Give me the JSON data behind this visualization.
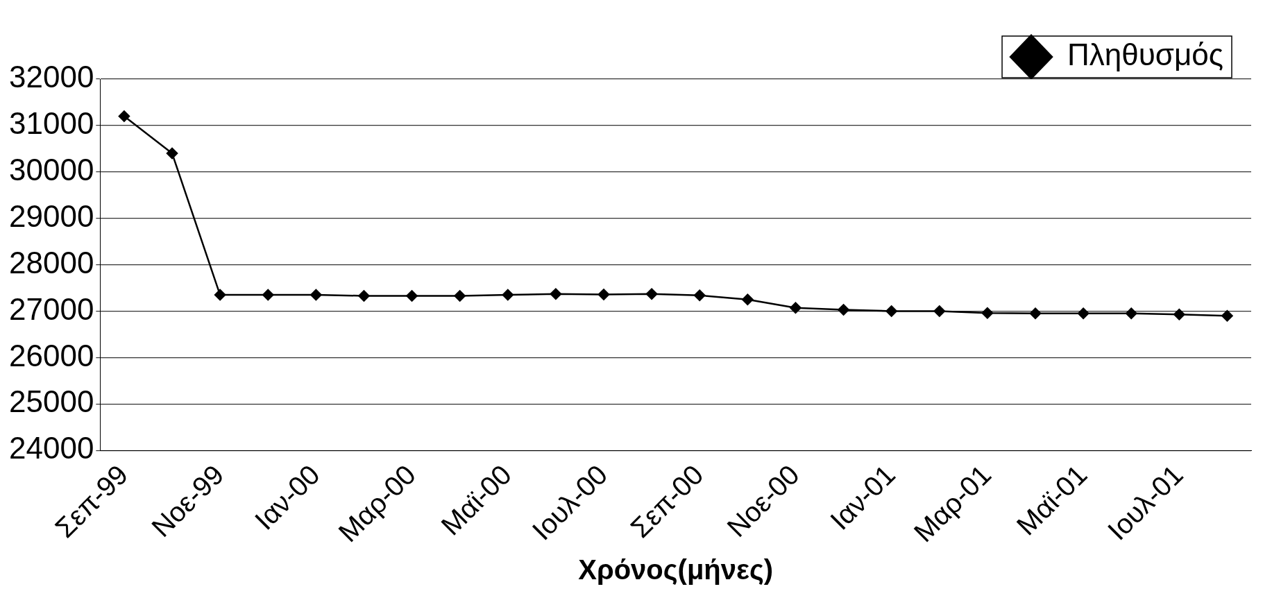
{
  "chart_data": {
    "type": "line",
    "xlabel": "Χρόνος(μήνες)",
    "categories": [
      "Σεπ-99",
      null,
      "Νοε-99",
      null,
      "Ιαν-00",
      null,
      "Μαρ-00",
      null,
      "Μαϊ-00",
      null,
      "Ιουλ-00",
      null,
      "Σεπ-00",
      null,
      "Νοε-00",
      null,
      "Ιαν-01",
      null,
      "Μαρ-01",
      null,
      "Μαϊ-01",
      null,
      "Ιουλ-01",
      null
    ],
    "series": [
      {
        "name": "Πληθυσμός",
        "color": "#000000",
        "values": [
          31200,
          30400,
          27350,
          27350,
          27350,
          27330,
          27330,
          27330,
          27350,
          27370,
          27360,
          27370,
          27340,
          27250,
          27070,
          27030,
          27000,
          27000,
          26960,
          26950,
          26950,
          26950,
          26930,
          26900
        ]
      }
    ],
    "ylim": [
      24000,
      32000
    ],
    "yticks": [
      24000,
      25000,
      26000,
      27000,
      28000,
      29000,
      30000,
      31000,
      32000
    ],
    "grid": "y",
    "legend": "top right",
    "marker": "diamond",
    "line_style": "solid"
  }
}
